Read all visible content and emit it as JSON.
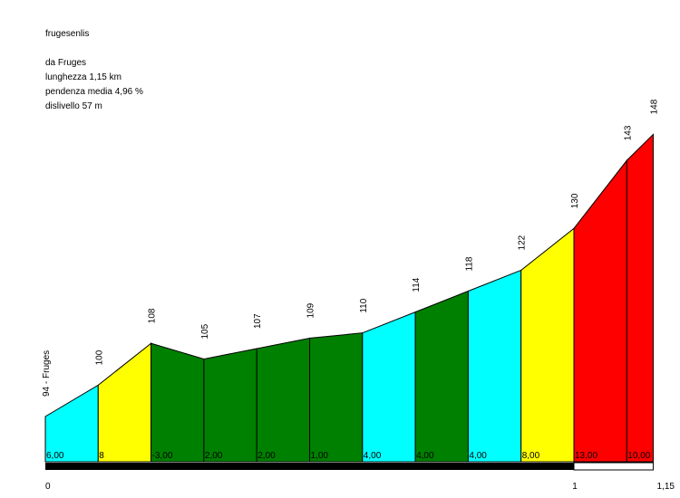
{
  "title": "frugesenlis",
  "info": {
    "start": "da Fruges",
    "length": "lunghezza 1,15 km",
    "avg_grade": "pendenza media 4,96 %",
    "elevation_gain": "dislivello 57 m"
  },
  "colors": {
    "cyan": "#00ffff",
    "yellow": "#ffff00",
    "green": "#008000",
    "red": "#ff0000",
    "bar": "#000000"
  },
  "chart_data": {
    "type": "area",
    "title": "frugesenlis",
    "x_unit": "km",
    "xlim": [
      0,
      1.15
    ],
    "ylim": [
      0,
      150
    ],
    "x_ticks": [
      {
        "value": 0,
        "label": "0"
      },
      {
        "value": 1,
        "label": "1"
      },
      {
        "value": 1.15,
        "label": "1,15"
      }
    ],
    "points": [
      {
        "x": 0.0,
        "y": 94,
        "label": "94 - Fruges"
      },
      {
        "x": 0.1,
        "y": 100,
        "label": "100"
      },
      {
        "x": 0.2,
        "y": 108,
        "label": "108"
      },
      {
        "x": 0.3,
        "y": 105,
        "label": "105"
      },
      {
        "x": 0.4,
        "y": 107,
        "label": "107"
      },
      {
        "x": 0.5,
        "y": 109,
        "label": "109"
      },
      {
        "x": 0.6,
        "y": 110,
        "label": "110"
      },
      {
        "x": 0.7,
        "y": 114,
        "label": "114"
      },
      {
        "x": 0.8,
        "y": 118,
        "label": "118"
      },
      {
        "x": 0.9,
        "y": 122,
        "label": "122"
      },
      {
        "x": 1.0,
        "y": 130,
        "label": "130"
      },
      {
        "x": 1.1,
        "y": 143,
        "label": "143"
      },
      {
        "x": 1.15,
        "y": 148,
        "label": "148"
      }
    ],
    "segments": [
      {
        "grade": 6.0,
        "label": "6,00",
        "color": "cyan"
      },
      {
        "grade": 8,
        "label": "8",
        "color": "yellow"
      },
      {
        "grade": -3.0,
        "label": "-3,00",
        "color": "green"
      },
      {
        "grade": 2.0,
        "label": "2,00",
        "color": "green"
      },
      {
        "grade": 2.0,
        "label": "2,00",
        "color": "green"
      },
      {
        "grade": 1.0,
        "label": "1,00",
        "color": "green"
      },
      {
        "grade": 4.0,
        "label": "4,00",
        "color": "cyan"
      },
      {
        "grade": 4.0,
        "label": "4,00",
        "color": "green"
      },
      {
        "grade": 4.0,
        "label": "4,00",
        "color": "cyan"
      },
      {
        "grade": 8.0,
        "label": "8,00",
        "color": "yellow"
      },
      {
        "grade": 13.0,
        "label": "13,00",
        "color": "red"
      },
      {
        "grade": 10.0,
        "label": "10,00",
        "color": "red"
      }
    ]
  }
}
